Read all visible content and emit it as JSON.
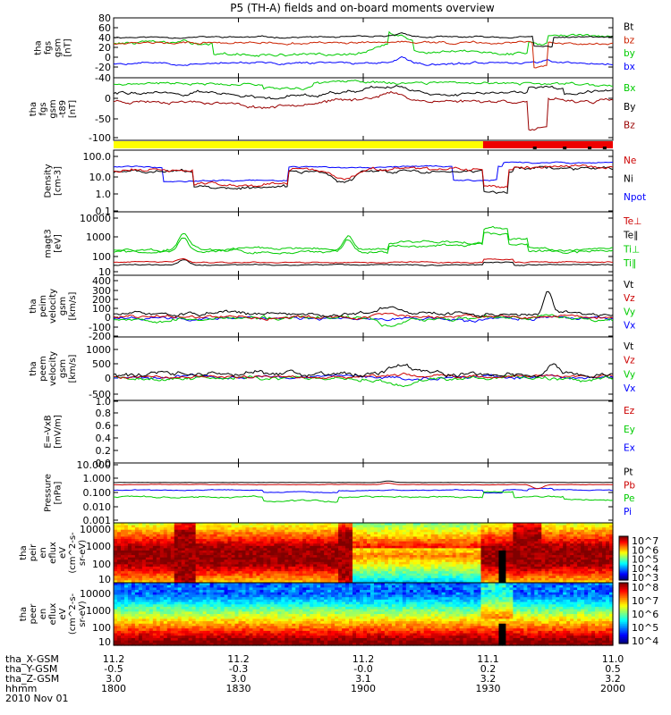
{
  "title": "P5 (TH-A) fields and on-board moments overview",
  "chart_data": [
    {
      "type": "line",
      "id": "fgs_gsm",
      "ylabel": [
        "tha",
        "fgs",
        "gsm",
        "[nT]"
      ],
      "ylim": [
        -40,
        80
      ],
      "yticks": [
        "80",
        "60",
        "40",
        "20",
        "0",
        "-20",
        "-40"
      ],
      "series": [
        {
          "name": "Bt",
          "color": "#000000"
        },
        {
          "name": "bz",
          "color": "#cc2200"
        },
        {
          "name": "by",
          "color": "#00cc00"
        },
        {
          "name": "bx",
          "color": "#0000ff"
        }
      ]
    },
    {
      "type": "line",
      "id": "fgs_t89",
      "ylabel": [
        "tha",
        "fgs",
        "gsm",
        "-t89",
        "[nT]"
      ],
      "ylim": [
        -120,
        30
      ],
      "yticks": [
        "0",
        "-50",
        "-100"
      ],
      "series": [
        {
          "name": "Bx",
          "color": "#00cc00"
        },
        {
          "name": "By",
          "color": "#000000"
        },
        {
          "name": "Bz",
          "color": "#990000"
        }
      ]
    },
    {
      "type": "bar",
      "id": "mode_bar",
      "segments": [
        {
          "color": "#ffff00",
          "until": 0.74
        },
        {
          "color": "#ee0000",
          "until": 1.0
        }
      ]
    },
    {
      "type": "line",
      "id": "density",
      "scale": "log",
      "ylabel": [
        "Density",
        "[cm-3]"
      ],
      "yticks": [
        "100.0",
        "10.0",
        "1.0",
        "0.1"
      ],
      "series": [
        {
          "name": "Ne",
          "color": "#cc0000"
        },
        {
          "name": "Ni",
          "color": "#000000"
        },
        {
          "name": "Npot",
          "color": "#0000ff"
        }
      ]
    },
    {
      "type": "line",
      "id": "temperature",
      "scale": "log",
      "ylabel": [
        "magt3",
        "[eV]"
      ],
      "yticks": [
        "10000",
        "1000",
        "100",
        "10"
      ],
      "series": [
        {
          "name": "Te⊥",
          "color": "#cc0000"
        },
        {
          "name": "Te∥",
          "color": "#000000"
        },
        {
          "name": "Ti⊥",
          "color": "#00cc00"
        },
        {
          "name": "Ti∥",
          "color": "#00cc00"
        }
      ]
    },
    {
      "type": "line",
      "id": "peim_velocity",
      "ylabel": [
        "tha",
        "peim",
        "velocity",
        "gsm",
        "[km/s]"
      ],
      "yticks": [
        "400",
        "300",
        "200",
        "100",
        "0",
        "-100",
        "-200"
      ],
      "series": [
        {
          "name": "Vt",
          "color": "#000000"
        },
        {
          "name": "Vz",
          "color": "#cc0000"
        },
        {
          "name": "Vy",
          "color": "#00cc00"
        },
        {
          "name": "Vx",
          "color": "#0000ff"
        }
      ]
    },
    {
      "type": "line",
      "id": "peem_velocity",
      "ylabel": [
        "tha",
        "peem",
        "velocity",
        "gsm",
        "[km/s]"
      ],
      "yticks": [
        "1000",
        "500",
        "0",
        "-500"
      ],
      "series": [
        {
          "name": "Vt",
          "color": "#000000"
        },
        {
          "name": "Vz",
          "color": "#cc0000"
        },
        {
          "name": "Vy",
          "color": "#00cc00"
        },
        {
          "name": "Vx",
          "color": "#0000ff"
        }
      ]
    },
    {
      "type": "line",
      "id": "efield",
      "ylabel": [
        "E=-VxB",
        "[mV/m]"
      ],
      "yticks": [
        "1.0",
        "0.8",
        "0.6",
        "0.4",
        "0.2",
        "0.0"
      ],
      "series": [
        {
          "name": "Ez",
          "color": "#cc0000"
        },
        {
          "name": "Ey",
          "color": "#00cc00"
        },
        {
          "name": "Ex",
          "color": "#0000ff"
        }
      ]
    },
    {
      "type": "line",
      "id": "pressure",
      "scale": "log",
      "ylabel": [
        "Pressure",
        "[nPa]"
      ],
      "yticks": [
        "10.000",
        "1.000",
        "0.100",
        "0.010",
        "0.001"
      ],
      "series": [
        {
          "name": "Pt",
          "color": "#000000"
        },
        {
          "name": "Pb",
          "color": "#cc0000"
        },
        {
          "name": "Pe",
          "color": "#00cc00"
        },
        {
          "name": "Pi",
          "color": "#0000ff"
        }
      ]
    },
    {
      "type": "heatmap",
      "id": "peir_eflux",
      "ylabel": [
        "tha",
        "peir",
        "en",
        "eflux",
        "eV",
        "(cm^2-s-",
        "sr-eV)"
      ],
      "yticks": [
        "10000",
        "1000",
        "100",
        "10"
      ],
      "colorbar": [
        "10^7",
        "10^6",
        "10^5",
        "10^4",
        "10^3"
      ]
    },
    {
      "type": "heatmap",
      "id": "peer_eflux",
      "ylabel": [
        "tha",
        "peer",
        "en",
        "eflux",
        "eV",
        "(cm^2-s-",
        "sr-eV)"
      ],
      "yticks": [
        "10000",
        "1000",
        "100",
        "10"
      ],
      "colorbar": [
        "10^8",
        "10^7",
        "10^6",
        "10^5",
        "10^4"
      ]
    }
  ],
  "x_axis": {
    "rows": [
      {
        "label": "tha_X-GSM",
        "values": [
          "11.2",
          "11.2",
          "11.2",
          "11.1",
          "11.0"
        ]
      },
      {
        "label": "tha_Y-GSM",
        "values": [
          "-0.5",
          "-0.3",
          "-0.0",
          "0.2",
          "0.5"
        ]
      },
      {
        "label": "tha_Z-GSM",
        "values": [
          "3.0",
          "3.0",
          "3.1",
          "3.2",
          "3.2"
        ]
      },
      {
        "label": "hhmm",
        "values": [
          "1800",
          "1830",
          "1900",
          "1930",
          "2000"
        ]
      }
    ],
    "date": "2010 Nov 01"
  }
}
